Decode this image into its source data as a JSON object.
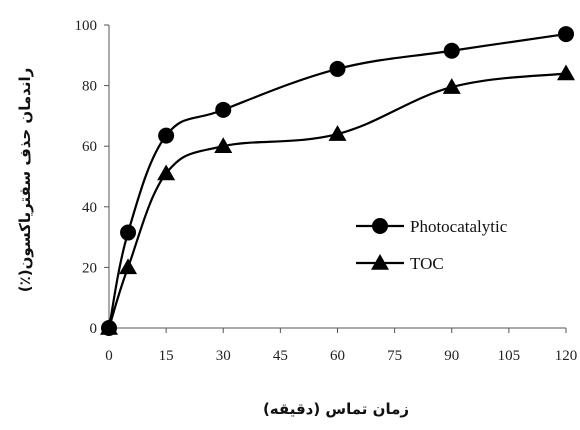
{
  "chart_data": {
    "type": "line",
    "title": "",
    "xlabel": "زمان تماس (دقیقه)",
    "ylabel": "راندمان حذف سفتریاکسون(٪)",
    "x_ticks": [
      "0",
      "15",
      "30",
      "45",
      "60",
      "75",
      "90",
      "105",
      "120"
    ],
    "y_ticks": [
      "0",
      "20",
      "40",
      "60",
      "80",
      "100"
    ],
    "xlim": [
      0,
      120
    ],
    "ylim": [
      0,
      100
    ],
    "grid": false,
    "legend_position": "middle-right",
    "smoothed": true,
    "series": [
      {
        "name": "Photocatalytic",
        "marker": "circle",
        "color": "#000000",
        "x": [
          0,
          5,
          15,
          30,
          60,
          90,
          120
        ],
        "y": [
          0,
          31.5,
          63.5,
          72,
          85.5,
          91.5,
          97
        ]
      },
      {
        "name": "TOC",
        "marker": "triangle",
        "color": "#000000",
        "x": [
          0,
          5,
          15,
          30,
          60,
          90,
          120
        ],
        "y": [
          0,
          20,
          51,
          60,
          64,
          79.5,
          84
        ]
      }
    ]
  }
}
